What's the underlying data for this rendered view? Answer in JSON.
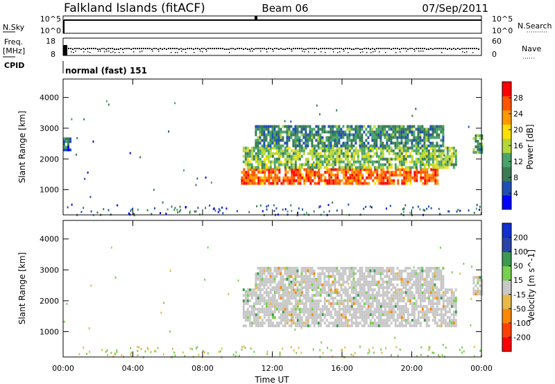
{
  "header": {
    "station": "Falkland Islands (fitACF)",
    "beam": "Beam 06",
    "date": "07/Sep/2011"
  },
  "strip_nsky": {
    "left_label": "N.Sky",
    "right_label": "N.Search",
    "ticks": [
      "10^5",
      "10^0"
    ]
  },
  "strip_freq": {
    "left_label_1": "Freq.",
    "left_label_2": "[MHz]",
    "left_ticks": [
      "18",
      "8"
    ],
    "right_label": "Nave",
    "right_ticks": [
      "60",
      "0"
    ]
  },
  "strip_cpid": {
    "label": "CPID",
    "mode": "normal (fast) 151"
  },
  "colors": {
    "power": [
      "#0000ff",
      "#1f4fb5",
      "#3b7a55",
      "#4aa36a",
      "#b5d63a",
      "#ffe000",
      "#ff9900",
      "#ff5500",
      "#ff0000"
    ],
    "velocity": [
      "#ff0000",
      "#ff4000",
      "#ff8800",
      "#e8b84a",
      "#c8c8c8",
      "#78d050",
      "#3a9a50",
      "#2844a8",
      "#1030d0"
    ]
  },
  "chart_data": [
    {
      "type": "heatmap",
      "title": "Power",
      "xlabel": "",
      "ylabel": "Slant Range [km]",
      "x_range_hours": [
        0,
        24
      ],
      "ylim": [
        180,
        4600
      ],
      "x_ticks": [
        "00:00",
        "04:00",
        "08:00",
        "12:00",
        "16:00",
        "20:00",
        "00:00"
      ],
      "y_ticks": [
        1000,
        2000,
        3000,
        4000
      ],
      "colorbar": {
        "label": "Power [dB]",
        "ticks": [
          4,
          8,
          12,
          16,
          20,
          24,
          28
        ],
        "range": [
          0,
          32
        ]
      },
      "regions": [
        {
          "t": [
            10.2,
            21.5
          ],
          "range_km": [
            1200,
            1700
          ],
          "power_db": 26
        },
        {
          "t": [
            10.3,
            22.5
          ],
          "range_km": [
            1700,
            2400
          ],
          "power_db": 14
        },
        {
          "t": [
            11.0,
            21.8
          ],
          "range_km": [
            2400,
            3100
          ],
          "power_db": 10
        },
        {
          "t": [
            23.5,
            24.0
          ],
          "range_km": [
            2200,
            2800
          ],
          "power_db": 12
        },
        {
          "t": [
            0.0,
            0.4
          ],
          "range_km": [
            2300,
            2700
          ],
          "power_db": 8
        }
      ]
    },
    {
      "type": "heatmap",
      "title": "Velocity",
      "xlabel": "Time UT",
      "ylabel": "Slant Range [km]",
      "x_range_hours": [
        0,
        24
      ],
      "ylim": [
        180,
        4600
      ],
      "x_ticks": [
        "00:00",
        "04:00",
        "08:00",
        "12:00",
        "16:00",
        "20:00",
        "00:00"
      ],
      "y_ticks": [
        1000,
        2000,
        3000,
        4000
      ],
      "colorbar": {
        "label": "Velocity [m s^-1]",
        "ticks": [
          200,
          100,
          50,
          15,
          -15,
          -50,
          -100,
          -200
        ],
        "range": [
          -250,
          250
        ]
      },
      "regions": [
        {
          "t": [
            10.3,
            22.5
          ],
          "range_km": [
            1200,
            2400
          ],
          "velocity": 0
        },
        {
          "t": [
            11.0,
            21.8
          ],
          "range_km": [
            2400,
            3100
          ],
          "velocity": 0
        },
        {
          "t": [
            23.5,
            24.0
          ],
          "range_km": [
            2200,
            2800
          ],
          "velocity": 0
        }
      ]
    }
  ]
}
